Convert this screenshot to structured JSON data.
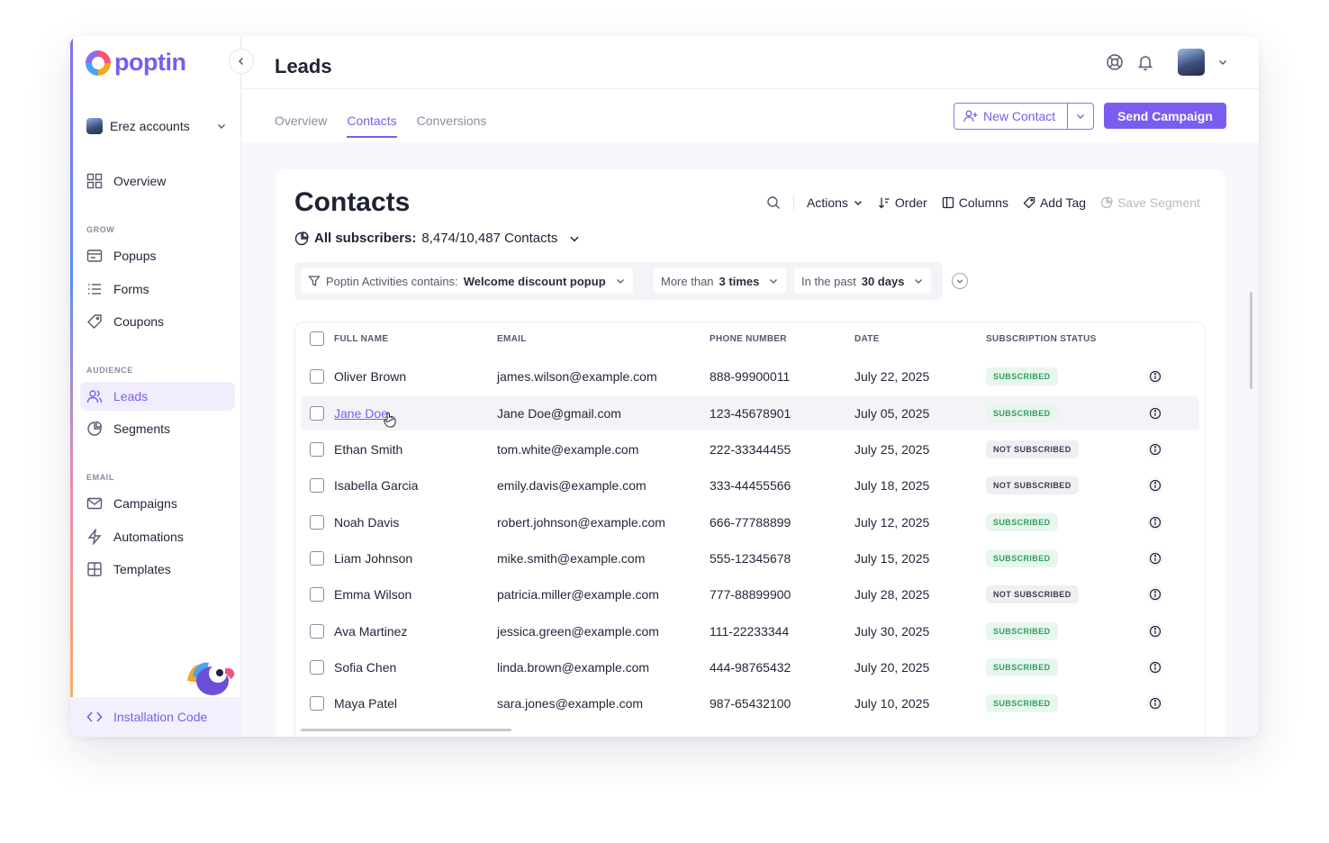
{
  "app": {
    "brand": "poptin",
    "accent_color": "#7b5cf0"
  },
  "sidebar": {
    "account_name": "Erez accounts",
    "overview_label": "Overview",
    "sections": {
      "grow": "GROW",
      "audience": "AUDIENCE",
      "email": "EMAIL"
    },
    "items": {
      "popups": "Popups",
      "forms": "Forms",
      "coupons": "Coupons",
      "leads": "Leads",
      "segments": "Segments",
      "campaigns": "Campaigns",
      "automations": "Automations",
      "templates": "Templates"
    },
    "installation_code": "Installation Code"
  },
  "header": {
    "title": "Leads",
    "tabs": [
      "Overview",
      "Contacts",
      "Conversions"
    ],
    "active_tab": "Contacts",
    "new_contact_label": "New Contact",
    "send_campaign_label": "Send Campaign"
  },
  "contacts": {
    "title": "Contacts",
    "toolbar": {
      "actions": "Actions",
      "order": "Order",
      "columns": "Columns",
      "add_tag": "Add Tag",
      "save_segment": "Save Segment"
    },
    "subscribers_label": "All subscribers:",
    "subscribers_value": "8,474/10,487 Contacts",
    "filters": {
      "f1_prefix": "Poptin Activities contains:",
      "f1_value": "Welcome discount popup",
      "f2_prefix": "More than",
      "f2_value": "3 times",
      "f3_prefix": "In the past",
      "f3_value": "30 days"
    },
    "columns": [
      "FULL NAME",
      "EMAIL",
      "PHONE NUMBER",
      "DATE",
      "SUBSCRIPTION STATUS"
    ],
    "rows": [
      {
        "name": "Oliver Brown",
        "email": "james.wilson@example.com",
        "phone": "888-99900011",
        "date": "July 22, 2025",
        "status": "SUBSCRIBED"
      },
      {
        "name": "Jane Doe",
        "email": "Jane Doe@gmail.com",
        "phone": "123-45678901",
        "date": "July 05, 2025",
        "status": "SUBSCRIBED"
      },
      {
        "name": "Ethan Smith",
        "email": "tom.white@example.com",
        "phone": "222-33344455",
        "date": "July 25, 2025",
        "status": "NOT SUBSCRIBED"
      },
      {
        "name": "Isabella Garcia",
        "email": "emily.davis@example.com",
        "phone": "333-44455566",
        "date": "July 18, 2025",
        "status": "NOT SUBSCRIBED"
      },
      {
        "name": "Noah Davis",
        "email": "robert.johnson@example.com",
        "phone": "666-77788899",
        "date": "July 12, 2025",
        "status": "SUBSCRIBED"
      },
      {
        "name": "Liam Johnson",
        "email": "mike.smith@example.com",
        "phone": "555-12345678",
        "date": "July 15, 2025",
        "status": "SUBSCRIBED"
      },
      {
        "name": "Emma Wilson",
        "email": "patricia.miller@example.com",
        "phone": "777-88899900",
        "date": "July 28, 2025",
        "status": "NOT SUBSCRIBED"
      },
      {
        "name": "Ava Martinez",
        "email": "jessica.green@example.com",
        "phone": "111-22233344",
        "date": "July 30, 2025",
        "status": "SUBSCRIBED"
      },
      {
        "name": "Sofia Chen",
        "email": "linda.brown@example.com",
        "phone": "444-98765432",
        "date": "July 20, 2025",
        "status": "SUBSCRIBED"
      },
      {
        "name": "Maya Patel",
        "email": "sara.jones@example.com",
        "phone": "987-65432100",
        "date": "July 10, 2025",
        "status": "SUBSCRIBED"
      }
    ]
  }
}
